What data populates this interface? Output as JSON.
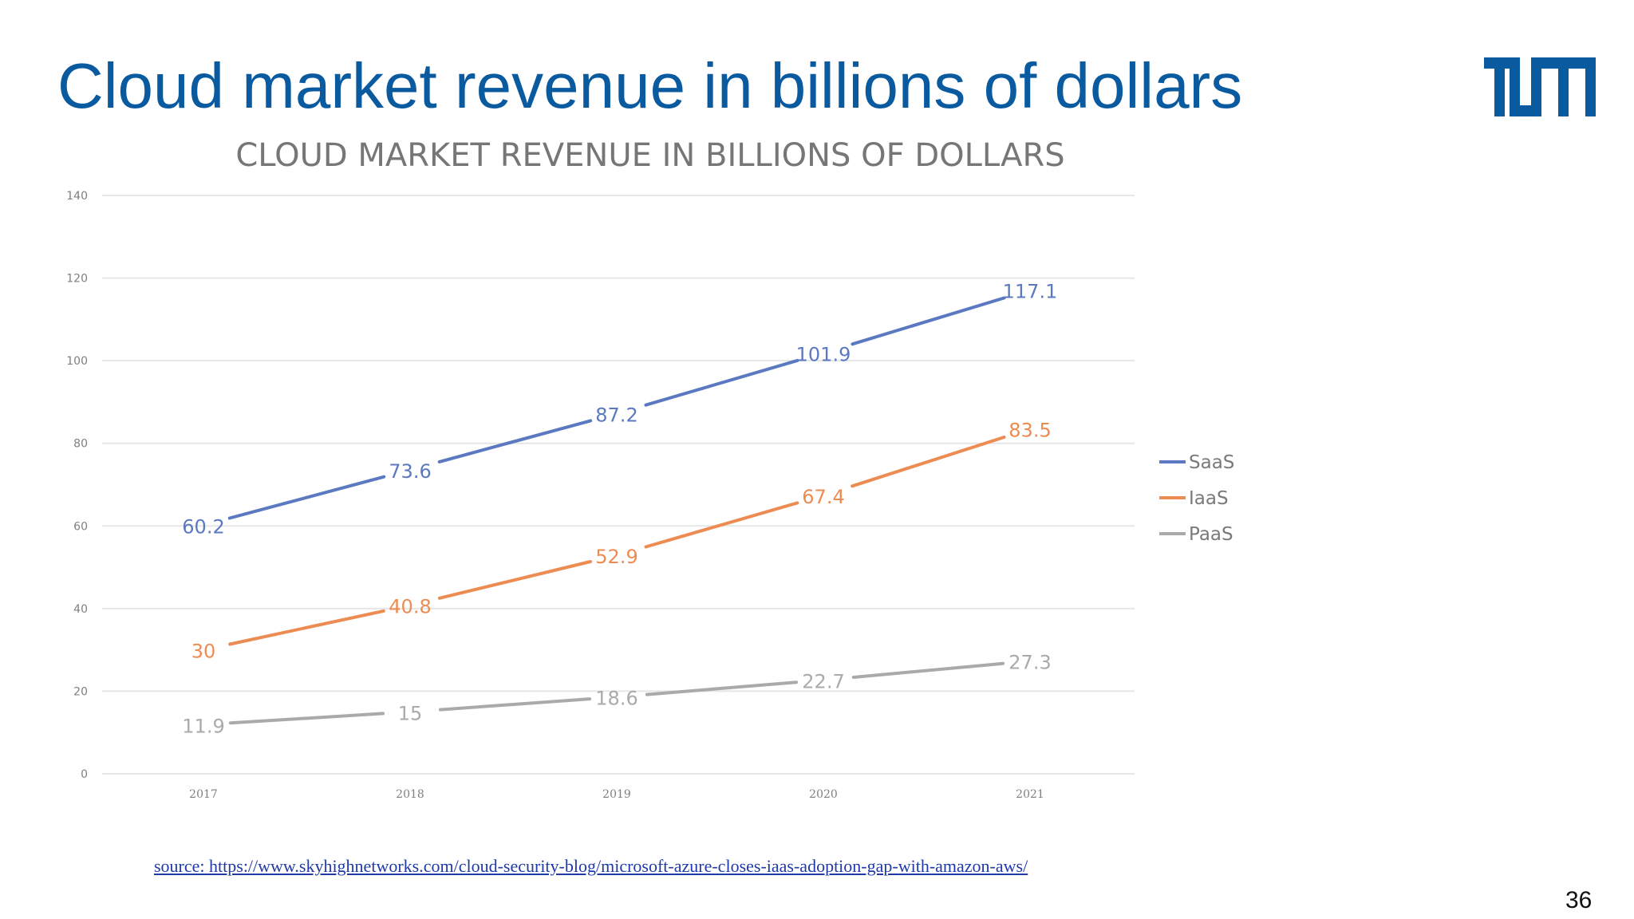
{
  "slide": {
    "title": "Cloud market revenue in billions of dollars",
    "source": "source: https://www.skyhighnetworks.com/cloud-security-blog/microsoft-azure-closes-iaas-adoption-gap-with-amazon-aws/",
    "page_number": "36",
    "logo": "TUM"
  },
  "colors": {
    "title": "#0a5aa0",
    "logo": "#0a5aa0",
    "SaaS": "#5b79c0",
    "IaaS": "#ec8c52",
    "PaaS": "#aaaaaa",
    "grid": "#e6e6e6",
    "chart_title": "#767676",
    "ticks": "#7f7f7f"
  },
  "chart_data": {
    "type": "line",
    "title": "CLOUD MARKET REVENUE IN BILLIONS OF DOLLARS",
    "xlabel": "",
    "ylabel": "",
    "categories": [
      "2017",
      "2018",
      "2019",
      "2020",
      "2021"
    ],
    "ylim": [
      0,
      140
    ],
    "yticks": [
      0,
      20,
      40,
      60,
      80,
      100,
      120,
      140
    ],
    "grid": true,
    "legend": "right",
    "series": [
      {
        "name": "SaaS",
        "values": [
          60.2,
          73.6,
          87.2,
          101.9,
          117.1
        ],
        "labels": [
          "60.2",
          "73.6",
          "87.2",
          "101.9",
          "117.1"
        ]
      },
      {
        "name": "IaaS",
        "values": [
          30,
          40.8,
          52.9,
          67.4,
          83.5
        ],
        "labels": [
          "30",
          "40.8",
          "52.9",
          "67.4",
          "83.5"
        ]
      },
      {
        "name": "PaaS",
        "values": [
          11.9,
          15,
          18.6,
          22.7,
          27.3
        ],
        "labels": [
          "11.9",
          "15",
          "18.6",
          "22.7",
          "27.3"
        ]
      }
    ]
  }
}
